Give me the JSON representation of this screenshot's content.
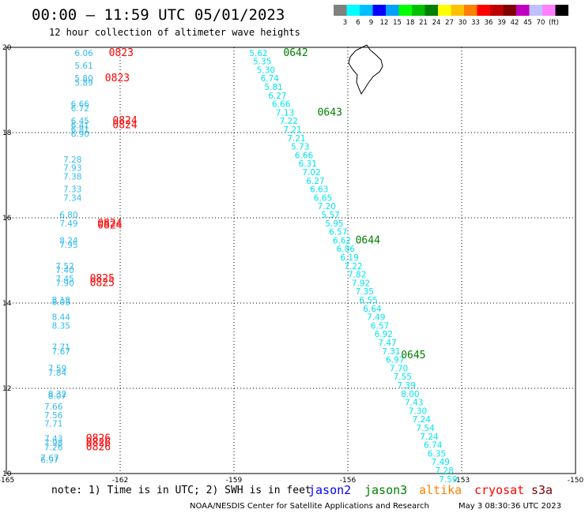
{
  "title": "00:00 – 11:59 UTC 05/01/2023",
  "subtitle": "12 hour collection of altimeter wave heights",
  "colorbar": {
    "colors": [
      "#808080",
      "#00ffff",
      "#00bfff",
      "#0000ff",
      "#00a0ff",
      "#00ff00",
      "#00c000",
      "#008000",
      "#ffff00",
      "#ffc000",
      "#ff8000",
      "#ff0000",
      "#c00000",
      "#800000",
      "#c000c0",
      "#c0c0ff",
      "#ff80ff",
      "#000000"
    ],
    "labels": [
      "3",
      "6",
      "9",
      "12",
      "15",
      "18",
      "21",
      "24",
      "27",
      "30",
      "33",
      "36",
      "39",
      "42",
      "45",
      "70",
      "(ft)"
    ]
  },
  "note": "note: 1) Time is in UTC; 2) SWH is in feet",
  "credit": "NOAA/NESDIS Center for Satellite Applications and Research",
  "timestamp": "May  3 08:30:36 UTC 2023",
  "legend": [
    {
      "name": "jason2",
      "color": "#0000ff"
    },
    {
      "name": "jason3",
      "color": "#008000"
    },
    {
      "name": "altika",
      "color": "#ff8000"
    },
    {
      "name": "cryosat",
      "color": "#ff0000"
    },
    {
      "name": "s3a",
      "color": "#800000"
    }
  ],
  "chart_data": {
    "type": "scatter",
    "xlim": [
      -165,
      -150
    ],
    "ylim": [
      10,
      20
    ],
    "x_ticks": [
      "-165",
      "-162",
      "-159",
      "-156",
      "-153",
      "-150"
    ],
    "y_ticks": [
      "10",
      "12",
      "14",
      "16",
      "18",
      "20"
    ],
    "grid": true,
    "series": [
      {
        "name": "jason3",
        "color": "#00e5ee",
        "points": [
          {
            "lon": -158.6,
            "lat": 19.8,
            "swh": "5.62"
          },
          {
            "lon": -158.5,
            "lat": 19.6,
            "swh": "5.35"
          },
          {
            "lon": -158.4,
            "lat": 19.4,
            "swh": "5.30"
          },
          {
            "lon": -158.3,
            "lat": 19.2,
            "swh": "6.74"
          },
          {
            "lon": -158.2,
            "lat": 19.0,
            "swh": "5.81"
          },
          {
            "lon": -158.1,
            "lat": 18.8,
            "swh": "6.27"
          },
          {
            "lon": -158.0,
            "lat": 18.6,
            "swh": "6.66"
          },
          {
            "lon": -157.9,
            "lat": 18.4,
            "swh": "7.13"
          },
          {
            "lon": -157.8,
            "lat": 18.2,
            "swh": "7.22"
          },
          {
            "lon": -157.7,
            "lat": 18.0,
            "swh": "7.21"
          },
          {
            "lon": -157.6,
            "lat": 17.8,
            "swh": "7.21"
          },
          {
            "lon": -157.5,
            "lat": 17.6,
            "swh": "5.73"
          },
          {
            "lon": -157.4,
            "lat": 17.4,
            "swh": "6.66"
          },
          {
            "lon": -157.3,
            "lat": 17.2,
            "swh": "6.31"
          },
          {
            "lon": -157.2,
            "lat": 17.0,
            "swh": "7.02"
          },
          {
            "lon": -157.1,
            "lat": 16.8,
            "swh": "6.27"
          },
          {
            "lon": -157.0,
            "lat": 16.6,
            "swh": "6.63"
          },
          {
            "lon": -156.9,
            "lat": 16.4,
            "swh": "6.65"
          },
          {
            "lon": -156.8,
            "lat": 16.2,
            "swh": "7.20"
          },
          {
            "lon": -156.7,
            "lat": 16.0,
            "swh": "5.57"
          },
          {
            "lon": -156.6,
            "lat": 15.8,
            "swh": "5.95"
          },
          {
            "lon": -156.5,
            "lat": 15.6,
            "swh": "6.57"
          },
          {
            "lon": -156.4,
            "lat": 15.4,
            "swh": "6.62"
          },
          {
            "lon": -156.3,
            "lat": 15.2,
            "swh": "6.86"
          },
          {
            "lon": -156.2,
            "lat": 15.0,
            "swh": "6.19"
          },
          {
            "lon": -156.1,
            "lat": 14.8,
            "swh": "7.22"
          },
          {
            "lon": -156.0,
            "lat": 14.6,
            "swh": "7.82"
          },
          {
            "lon": -155.9,
            "lat": 14.4,
            "swh": "7.92"
          },
          {
            "lon": -155.8,
            "lat": 14.2,
            "swh": "7.35"
          },
          {
            "lon": -155.7,
            "lat": 14.0,
            "swh": "6.55"
          },
          {
            "lon": -155.6,
            "lat": 13.8,
            "swh": "6.64"
          },
          {
            "lon": -155.5,
            "lat": 13.6,
            "swh": "7.49"
          },
          {
            "lon": -155.4,
            "lat": 13.4,
            "swh": "6.57"
          },
          {
            "lon": -155.3,
            "lat": 13.2,
            "swh": "6.92"
          },
          {
            "lon": -155.2,
            "lat": 13.0,
            "swh": "7.47"
          },
          {
            "lon": -155.1,
            "lat": 12.8,
            "swh": "7.31"
          },
          {
            "lon": -155.0,
            "lat": 12.6,
            "swh": "6.97"
          },
          {
            "lon": -154.9,
            "lat": 12.4,
            "swh": "7.70"
          },
          {
            "lon": -154.8,
            "lat": 12.2,
            "swh": "7.55"
          },
          {
            "lon": -154.7,
            "lat": 12.0,
            "swh": "7.39"
          },
          {
            "lon": -154.6,
            "lat": 11.8,
            "swh": "8.00"
          },
          {
            "lon": -154.5,
            "lat": 11.6,
            "swh": "7.43"
          },
          {
            "lon": -154.4,
            "lat": 11.4,
            "swh": "7.30"
          },
          {
            "lon": -154.3,
            "lat": 11.2,
            "swh": "7.24"
          },
          {
            "lon": -154.2,
            "lat": 11.0,
            "swh": "7.54"
          },
          {
            "lon": -154.1,
            "lat": 10.8,
            "swh": "7.24"
          },
          {
            "lon": -154.0,
            "lat": 10.6,
            "swh": "6.74"
          },
          {
            "lon": -153.9,
            "lat": 10.4,
            "swh": "6.35"
          },
          {
            "lon": -153.8,
            "lat": 10.2,
            "swh": "7.49"
          },
          {
            "lon": -153.7,
            "lat": 10.0,
            "swh": "7.28"
          },
          {
            "lon": -153.6,
            "lat": 9.8,
            "swh": "7.59"
          }
        ],
        "time_marks": [
          {
            "lon": -157.7,
            "lat": 19.8,
            "label": "0642"
          },
          {
            "lon": -156.8,
            "lat": 18.4,
            "label": "0643"
          },
          {
            "lon": -155.8,
            "lat": 15.4,
            "label": "0644"
          },
          {
            "lon": -154.6,
            "lat": 12.7,
            "label": "0645"
          }
        ]
      },
      {
        "name": "cryosat",
        "color": "#33bbee",
        "points": [
          {
            "lon": -163.2,
            "lat": 19.8,
            "swh": "6.06"
          },
          {
            "lon": -163.2,
            "lat": 19.5,
            "swh": "5.61"
          },
          {
            "lon": -163.2,
            "lat": 19.2,
            "swh": "5.80"
          },
          {
            "lon": -163.2,
            "lat": 19.1,
            "swh": "5.89"
          },
          {
            "lon": -163.3,
            "lat": 18.6,
            "swh": "6.66"
          },
          {
            "lon": -163.3,
            "lat": 18.5,
            "swh": "6.72"
          },
          {
            "lon": -163.3,
            "lat": 18.2,
            "swh": "6.45"
          },
          {
            "lon": -163.3,
            "lat": 18.1,
            "swh": "6.41"
          },
          {
            "lon": -163.3,
            "lat": 18.0,
            "swh": "6.81"
          },
          {
            "lon": -163.3,
            "lat": 17.9,
            "swh": "6.90"
          },
          {
            "lon": -163.5,
            "lat": 17.3,
            "swh": "7.28"
          },
          {
            "lon": -163.5,
            "lat": 17.1,
            "swh": "7.93"
          },
          {
            "lon": -163.5,
            "lat": 16.9,
            "swh": "7.38"
          },
          {
            "lon": -163.5,
            "lat": 16.6,
            "swh": "7.33"
          },
          {
            "lon": -163.5,
            "lat": 16.4,
            "swh": "7.34"
          },
          {
            "lon": -163.6,
            "lat": 16.0,
            "swh": "6.80"
          },
          {
            "lon": -163.6,
            "lat": 15.8,
            "swh": "7.49"
          },
          {
            "lon": -163.6,
            "lat": 15.4,
            "swh": "8.24"
          },
          {
            "lon": -163.6,
            "lat": 15.3,
            "swh": "7.95"
          },
          {
            "lon": -163.7,
            "lat": 14.8,
            "swh": "7.52"
          },
          {
            "lon": -163.7,
            "lat": 14.7,
            "swh": "7.40"
          },
          {
            "lon": -163.7,
            "lat": 14.5,
            "swh": "7.45"
          },
          {
            "lon": -163.7,
            "lat": 14.4,
            "swh": "7.90"
          },
          {
            "lon": -163.8,
            "lat": 14.0,
            "swh": "8.18"
          },
          {
            "lon": -163.8,
            "lat": 13.95,
            "swh": "8.03"
          },
          {
            "lon": -163.8,
            "lat": 13.6,
            "swh": "8.44"
          },
          {
            "lon": -163.8,
            "lat": 13.4,
            "swh": "8.35"
          },
          {
            "lon": -163.8,
            "lat": 12.9,
            "swh": "7.71"
          },
          {
            "lon": -163.8,
            "lat": 12.8,
            "swh": "7.67"
          },
          {
            "lon": -163.9,
            "lat": 12.4,
            "swh": "7.59"
          },
          {
            "lon": -163.9,
            "lat": 12.3,
            "swh": "7.84"
          },
          {
            "lon": -163.9,
            "lat": 11.8,
            "swh": "8.32"
          },
          {
            "lon": -163.9,
            "lat": 11.75,
            "swh": "8.07"
          },
          {
            "lon": -164.0,
            "lat": 11.5,
            "swh": "7.66"
          },
          {
            "lon": -164.0,
            "lat": 11.3,
            "swh": "7.56"
          },
          {
            "lon": -164.0,
            "lat": 11.1,
            "swh": "7.71"
          },
          {
            "lon": -164.0,
            "lat": 10.75,
            "swh": "7.43"
          },
          {
            "lon": -164.0,
            "lat": 10.65,
            "swh": "7.98"
          },
          {
            "lon": -164.0,
            "lat": 10.55,
            "swh": "7.26"
          },
          {
            "lon": -164.1,
            "lat": 10.3,
            "swh": "7.67"
          },
          {
            "lon": -164.1,
            "lat": 10.25,
            "swh": "6.97"
          }
        ],
        "time_marks": [
          {
            "lon": -162.3,
            "lat": 19.8,
            "label": "0823"
          },
          {
            "lon": -162.4,
            "lat": 19.2,
            "label": "0823"
          },
          {
            "lon": -162.2,
            "lat": 18.2,
            "label": "0824"
          },
          {
            "lon": -162.2,
            "lat": 18.1,
            "label": "0824"
          },
          {
            "lon": -162.6,
            "lat": 15.8,
            "label": "0824"
          },
          {
            "lon": -162.6,
            "lat": 15.75,
            "label": "0824"
          },
          {
            "lon": -162.8,
            "lat": 14.5,
            "label": "0825"
          },
          {
            "lon": -162.8,
            "lat": 14.4,
            "label": "0825"
          },
          {
            "lon": -162.9,
            "lat": 10.75,
            "label": "0826"
          },
          {
            "lon": -162.9,
            "lat": 10.65,
            "label": "0826"
          },
          {
            "lon": -162.9,
            "lat": 10.55,
            "label": "0826"
          }
        ]
      }
    ]
  }
}
